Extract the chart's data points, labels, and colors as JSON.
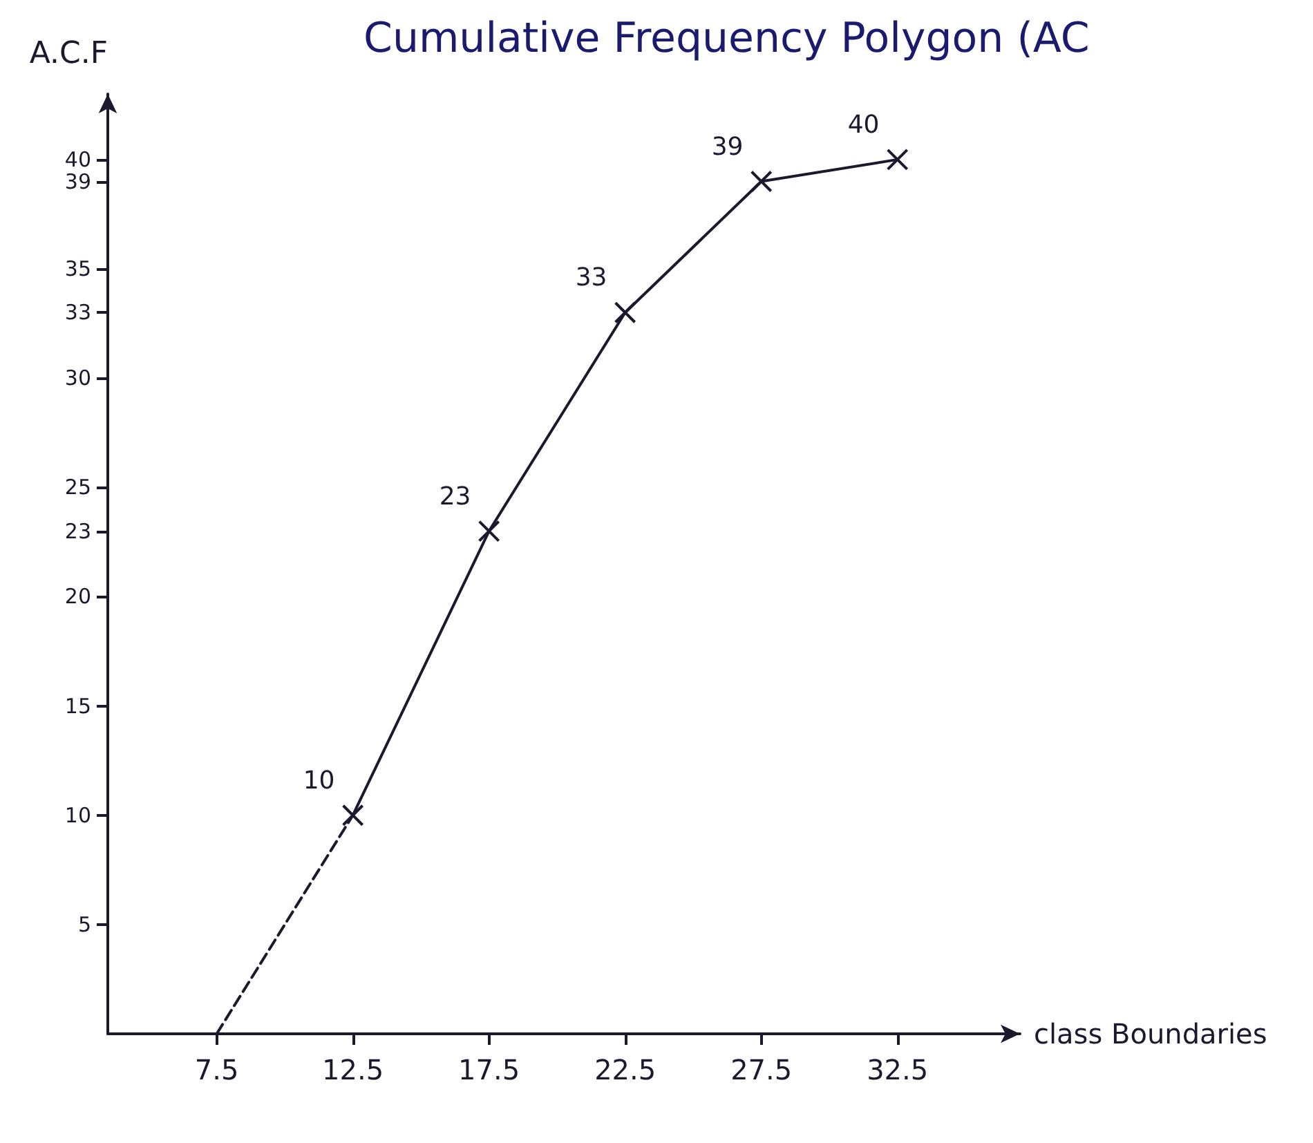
{
  "chart_data": {
    "type": "line",
    "title": "Cumulative Frequency Polygon (AC",
    "xlabel": "class Boundaries",
    "ylabel": "A.C.F",
    "xlim": [
      3.5,
      37
    ],
    "xticks": [
      7.5,
      12.5,
      17.5,
      22.5,
      27.5,
      32.5
    ],
    "ylim": [
      0,
      43
    ],
    "yticks": [
      5,
      10,
      15,
      20,
      {
        "value": 23,
        "label": "23"
      },
      25,
      30,
      {
        "value": 33,
        "label": "33"
      },
      35,
      {
        "value": 39,
        "label": "39"
      },
      40
    ],
    "grid": false,
    "series": [
      {
        "color": "#1a1a2e",
        "x": [
          7.5,
          12.5
        ],
        "values": [
          0,
          10
        ],
        "line_style": "dashed"
      },
      {
        "color": "#1a1a2e",
        "x": [
          12.5,
          17.5,
          22.5,
          27.5,
          32.5
        ],
        "values": [
          10,
          23,
          33,
          39,
          40
        ],
        "line_style": "solid",
        "marker": "cross",
        "value_labels": [
          "10",
          "23",
          "33",
          "39",
          "40"
        ]
      }
    ]
  }
}
